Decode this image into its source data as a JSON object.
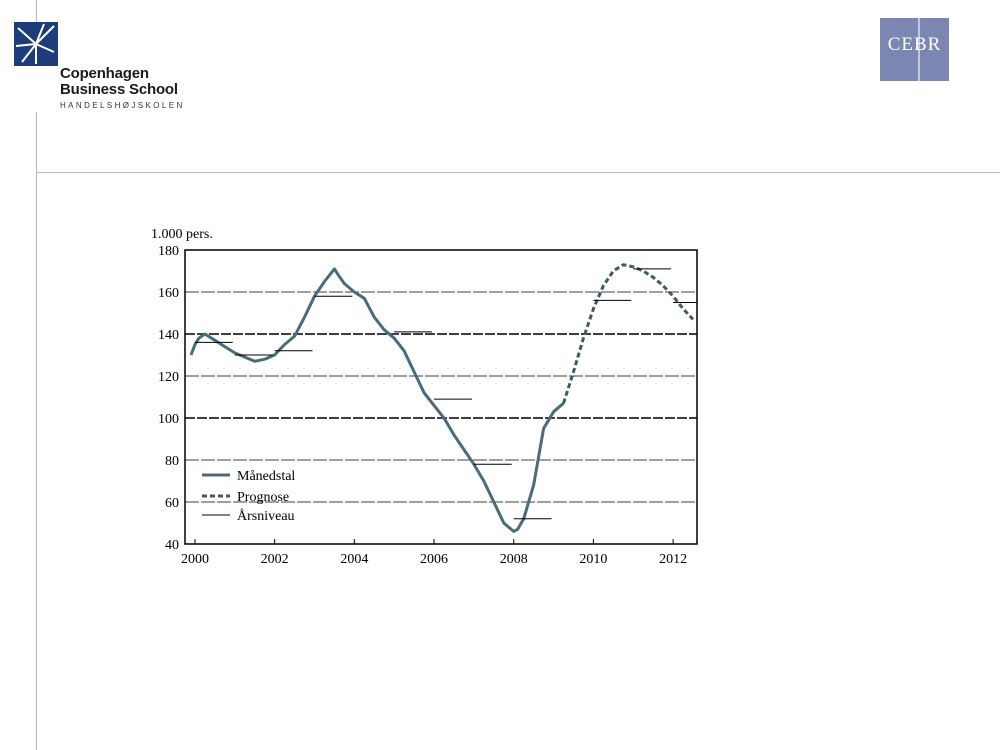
{
  "header": {
    "cbs_logo": {
      "name_line1": "Copenhagen",
      "name_line2": "Business School",
      "subtitle": "HANDELSHØJSKOLEN"
    },
    "cebr_logo": {
      "text": "CEBR",
      "color": "#7b87b2"
    }
  },
  "chart_data": {
    "type": "line",
    "title": "",
    "ylabel": "1.000 pers.",
    "xlabel": "",
    "ylim": [
      40,
      180
    ],
    "yticks": [
      40,
      60,
      80,
      100,
      120,
      140,
      160,
      180
    ],
    "xlim": [
      1999.75,
      2012.6
    ],
    "xticks": [
      2000,
      2002,
      2004,
      2006,
      2008,
      2010,
      2012
    ],
    "legend": {
      "placement": "bottom-left",
      "entries": [
        "Månedstal",
        "Prognose",
        "Årsniveau"
      ]
    },
    "line_color": "#4a6b7a",
    "series": [
      {
        "name": "Månedstal",
        "style": "solid",
        "x": [
          1999.9,
          2000.0,
          2000.1,
          2000.25,
          2000.5,
          2000.75,
          2001.0,
          2001.25,
          2001.5,
          2001.75,
          2002.0,
          2002.25,
          2002.5,
          2002.75,
          2003.0,
          2003.25,
          2003.5,
          2003.6,
          2003.75,
          2004.0,
          2004.25,
          2004.5,
          2004.75,
          2005.0,
          2005.25,
          2005.5,
          2005.75,
          2006.0,
          2006.25,
          2006.5,
          2006.75,
          2007.0,
          2007.25,
          2007.5,
          2007.75,
          2008.0,
          2008.1,
          2008.25,
          2008.5,
          2008.75,
          2009.0,
          2009.25
        ],
        "y": [
          130,
          135,
          138,
          140,
          137,
          134,
          131,
          129,
          127,
          128,
          130,
          135,
          139,
          148,
          158,
          165,
          171,
          168,
          164,
          160,
          157,
          148,
          142,
          138,
          132,
          122,
          112,
          106,
          100,
          92,
          85,
          78,
          70,
          60,
          50,
          46,
          47,
          52,
          68,
          95,
          103,
          107
        ]
      },
      {
        "name": "Prognose",
        "style": "dashed",
        "x": [
          2009.25,
          2009.5,
          2009.75,
          2010.0,
          2010.25,
          2010.5,
          2010.75,
          2011.0,
          2011.25,
          2011.5,
          2011.75,
          2012.0,
          2012.25,
          2012.5
        ],
        "y": [
          107,
          122,
          138,
          152,
          163,
          170,
          173,
          172,
          170,
          167,
          163,
          158,
          152,
          147
        ]
      },
      {
        "name": "Årsniveau",
        "style": "thin",
        "segments": [
          {
            "x": [
              2000.0,
              2000.95
            ],
            "y": 136
          },
          {
            "x": [
              2001.0,
              2001.95
            ],
            "y": 130
          },
          {
            "x": [
              2002.0,
              2002.95
            ],
            "y": 132
          },
          {
            "x": [
              2003.0,
              2003.95
            ],
            "y": 158
          },
          {
            "x": [
              2005.0,
              2005.95
            ],
            "y": 141
          },
          {
            "x": [
              2006.0,
              2006.95
            ],
            "y": 109
          },
          {
            "x": [
              2007.0,
              2007.95
            ],
            "y": 78
          },
          {
            "x": [
              2008.0,
              2008.95
            ],
            "y": 52
          },
          {
            "x": [
              2010.0,
              2010.95
            ],
            "y": 156
          },
          {
            "x": [
              2011.0,
              2011.95
            ],
            "y": 171
          },
          {
            "x": [
              2012.0,
              2012.95
            ],
            "y": 155
          }
        ]
      }
    ]
  }
}
